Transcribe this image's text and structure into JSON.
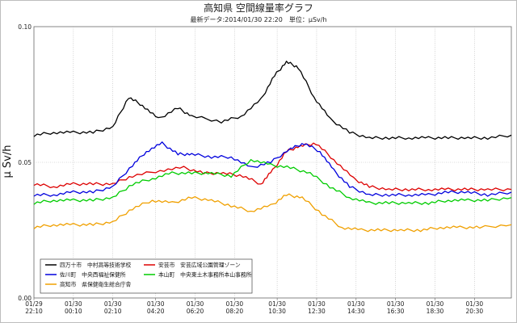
{
  "chart_data": {
    "type": "line",
    "title": "高知県 空間線量率グラフ",
    "subtitle": "最新データ:2014/01/30 22:20　単位：μSv/h",
    "ylabel": "μ Sv/h",
    "xlabel": "",
    "ylim": [
      0,
      0.1
    ],
    "y_ticks": [
      "0.00",
      "0.05",
      "0.10"
    ],
    "grid": true,
    "legend_position": "bottom-left",
    "x_ticks": [
      {
        "date": "01/29",
        "time": "22:10"
      },
      {
        "date": "01/30",
        "time": "00:10"
      },
      {
        "date": "01/30",
        "time": "02:10"
      },
      {
        "date": "01/30",
        "time": "04:20"
      },
      {
        "date": "01/30",
        "time": "06:20"
      },
      {
        "date": "01/30",
        "time": "08:20"
      },
      {
        "date": "01/30",
        "time": "10:30"
      },
      {
        "date": "01/30",
        "time": "12:30"
      },
      {
        "date": "01/30",
        "time": "14:30"
      },
      {
        "date": "01/30",
        "time": "16:30"
      },
      {
        "date": "01/30",
        "time": "18:30"
      },
      {
        "date": "01/30",
        "time": "20:30"
      }
    ],
    "x_hours": [
      0,
      2,
      4,
      6.17,
      8.17,
      10.17,
      12.33,
      14.33,
      16.33,
      18.33,
      20.33,
      22.33
    ],
    "x_range": [
      0,
      24.2
    ],
    "series": [
      {
        "name": "四万十市　中村高等技術学校",
        "color": "#000000",
        "points": [
          [
            0,
            0.06
          ],
          [
            1,
            0.061
          ],
          [
            2,
            0.061
          ],
          [
            3,
            0.061
          ],
          [
            4,
            0.063
          ],
          [
            4.8,
            0.074
          ],
          [
            5.5,
            0.071
          ],
          [
            6.3,
            0.066
          ],
          [
            7.3,
            0.07
          ],
          [
            8,
            0.067
          ],
          [
            9.5,
            0.065
          ],
          [
            10.5,
            0.067
          ],
          [
            11.5,
            0.073
          ],
          [
            12.2,
            0.082
          ],
          [
            12.8,
            0.087
          ],
          [
            13.4,
            0.085
          ],
          [
            14.2,
            0.074
          ],
          [
            15,
            0.066
          ],
          [
            16,
            0.061
          ],
          [
            17,
            0.059
          ],
          [
            18,
            0.059
          ],
          [
            19,
            0.059
          ],
          [
            20,
            0.059
          ],
          [
            21,
            0.059
          ],
          [
            22,
            0.059
          ],
          [
            23,
            0.059
          ],
          [
            24.2,
            0.06
          ]
        ]
      },
      {
        "name": "安芸市　安芸広域公園管理ゾーン",
        "color": "#dd0000",
        "points": [
          [
            0,
            0.042
          ],
          [
            1,
            0.041
          ],
          [
            2,
            0.042
          ],
          [
            3,
            0.042
          ],
          [
            4,
            0.042
          ],
          [
            5,
            0.045
          ],
          [
            6.4,
            0.047
          ],
          [
            7.6,
            0.048
          ],
          [
            8.6,
            0.046
          ],
          [
            9.6,
            0.046
          ],
          [
            10.6,
            0.045
          ],
          [
            11.5,
            0.042
          ],
          [
            12.1,
            0.047
          ],
          [
            12.8,
            0.054
          ],
          [
            13.5,
            0.056
          ],
          [
            14.3,
            0.057
          ],
          [
            15.2,
            0.051
          ],
          [
            16.2,
            0.044
          ],
          [
            17,
            0.041
          ],
          [
            18,
            0.04
          ],
          [
            19,
            0.04
          ],
          [
            20,
            0.04
          ],
          [
            21,
            0.04
          ],
          [
            22,
            0.04
          ],
          [
            23,
            0.04
          ],
          [
            24.2,
            0.04
          ]
        ]
      },
      {
        "name": "佐川町　中央西福祉保健所",
        "color": "#0000dd",
        "points": [
          [
            0,
            0.038
          ],
          [
            1,
            0.038
          ],
          [
            2,
            0.039
          ],
          [
            3,
            0.039
          ],
          [
            4,
            0.041
          ],
          [
            5,
            0.049
          ],
          [
            5.7,
            0.054
          ],
          [
            6.5,
            0.057
          ],
          [
            7.3,
            0.053
          ],
          [
            8,
            0.053
          ],
          [
            9,
            0.052
          ],
          [
            10,
            0.052
          ],
          [
            11,
            0.048
          ],
          [
            12,
            0.05
          ],
          [
            13,
            0.055
          ],
          [
            13.7,
            0.057
          ],
          [
            14.5,
            0.054
          ],
          [
            15.2,
            0.047
          ],
          [
            16,
            0.041
          ],
          [
            17,
            0.038
          ],
          [
            18,
            0.038
          ],
          [
            19,
            0.038
          ],
          [
            20,
            0.038
          ],
          [
            21,
            0.039
          ],
          [
            22,
            0.039
          ],
          [
            23,
            0.038
          ],
          [
            24.2,
            0.039
          ]
        ]
      },
      {
        "name": "本山町　中央東土木事務所本山事務所",
        "color": "#00cc00",
        "points": [
          [
            0,
            0.035
          ],
          [
            1,
            0.036
          ],
          [
            2,
            0.036
          ],
          [
            3,
            0.036
          ],
          [
            4,
            0.037
          ],
          [
            5,
            0.042
          ],
          [
            6,
            0.044
          ],
          [
            7,
            0.046
          ],
          [
            8,
            0.046
          ],
          [
            9,
            0.046
          ],
          [
            10,
            0.045
          ],
          [
            11,
            0.051
          ],
          [
            12,
            0.049
          ],
          [
            13,
            0.048
          ],
          [
            14,
            0.046
          ],
          [
            15,
            0.041
          ],
          [
            16,
            0.037
          ],
          [
            17,
            0.035
          ],
          [
            18,
            0.035
          ],
          [
            19,
            0.035
          ],
          [
            20,
            0.035
          ],
          [
            21,
            0.036
          ],
          [
            22,
            0.036
          ],
          [
            23,
            0.036
          ],
          [
            24.2,
            0.037
          ]
        ]
      },
      {
        "name": "高知市　県保健衛生総合庁舎",
        "color": "#f0a000",
        "points": [
          [
            0,
            0.026
          ],
          [
            1,
            0.027
          ],
          [
            2,
            0.027
          ],
          [
            3,
            0.027
          ],
          [
            4,
            0.028
          ],
          [
            5,
            0.033
          ],
          [
            6,
            0.036
          ],
          [
            7,
            0.035
          ],
          [
            8,
            0.037
          ],
          [
            9,
            0.036
          ],
          [
            10,
            0.034
          ],
          [
            11,
            0.032
          ],
          [
            12,
            0.034
          ],
          [
            12.8,
            0.038
          ],
          [
            13.6,
            0.037
          ],
          [
            14.6,
            0.031
          ],
          [
            15.6,
            0.026
          ],
          [
            16.6,
            0.025
          ],
          [
            17.6,
            0.025
          ],
          [
            18.6,
            0.025
          ],
          [
            19.6,
            0.025
          ],
          [
            20.6,
            0.026
          ],
          [
            21.6,
            0.026
          ],
          [
            22.6,
            0.026
          ],
          [
            24.2,
            0.027
          ]
        ]
      }
    ]
  }
}
